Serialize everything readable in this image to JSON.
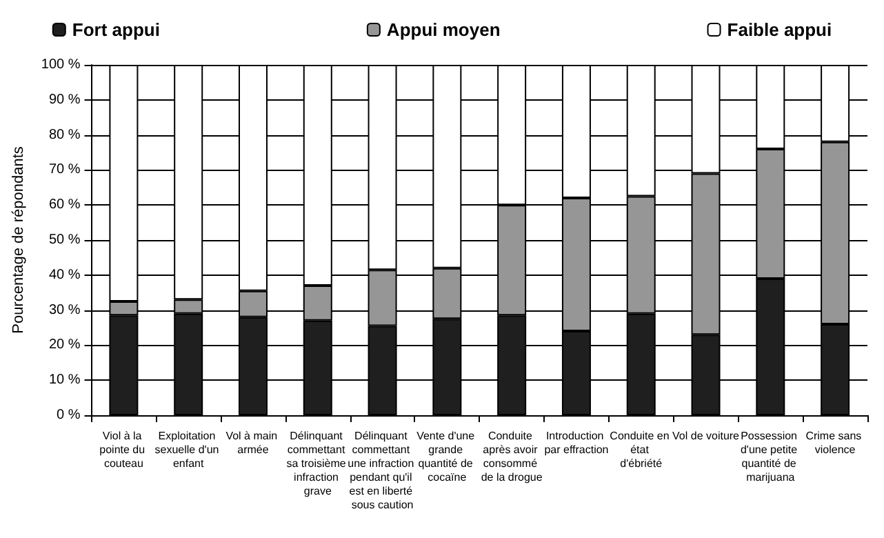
{
  "chart_data": {
    "type": "bar",
    "stacked": true,
    "ylabel": "Pourcentage de répondants",
    "legend": "top",
    "grid": "y",
    "categories": [
      "Viol à la pointe du couteau",
      "Exploitation sexuelle d'un enfant",
      "Vol à main armée",
      "Délinquant commettant sa troisième infraction grave",
      "Délinquant commettant une infraction pendant qu'il est en liberté sous caution",
      "Vente d'une grande quantité de cocaïne",
      "Conduite après avoir consommé de la drogue",
      "Introduction par effraction",
      "Conduite en état d'ébriété",
      "Vol de voiture",
      "Possession d'une petite quantité de marijuana",
      "Crime sans violence"
    ],
    "series": [
      {
        "name": "Fort appui",
        "color": "#1f1f1f",
        "values": [
          28.5,
          29,
          28,
          27,
          25.5,
          27.5,
          28.5,
          24,
          29,
          23,
          39,
          26
        ]
      },
      {
        "name": "Appui moyen",
        "color": "#969696",
        "values": [
          4,
          4,
          7.5,
          10,
          16,
          14.5,
          31.5,
          38,
          33.5,
          46,
          37,
          52
        ]
      },
      {
        "name": "Faible appui",
        "color": "#ffffff",
        "values": [
          67.5,
          67,
          64.5,
          63,
          58.5,
          58,
          40,
          38,
          37.5,
          31,
          24,
          22
        ]
      }
    ],
    "ylim": [
      0,
      100
    ],
    "yticks": [
      {
        "value": 0,
        "label": "0 %"
      },
      {
        "value": 10,
        "label": "10 %"
      },
      {
        "value": 20,
        "label": "20 %"
      },
      {
        "value": 30,
        "label": "30 %"
      },
      {
        "value": 40,
        "label": "40 %"
      },
      {
        "value": 50,
        "label": "50 %"
      },
      {
        "value": 60,
        "label": "60 %"
      },
      {
        "value": 70,
        "label": "70 %"
      },
      {
        "value": 80,
        "label": "80 %"
      },
      {
        "value": 90,
        "label": "90 %"
      },
      {
        "value": 100,
        "label": "100 %"
      }
    ]
  }
}
